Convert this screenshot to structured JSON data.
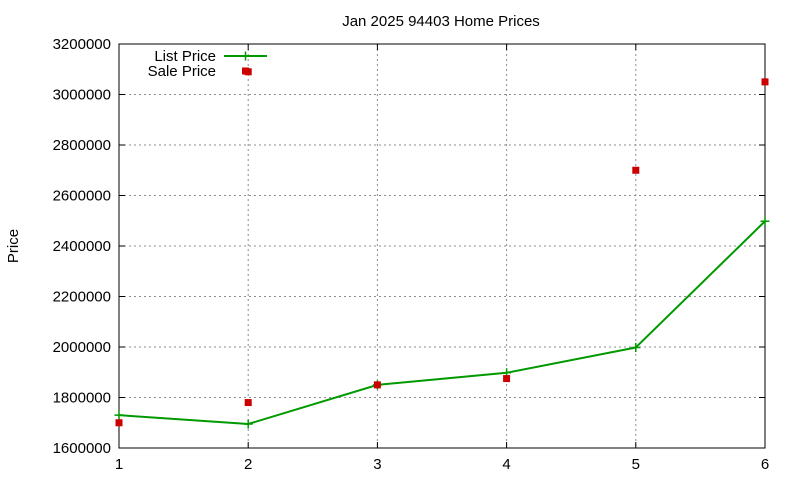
{
  "chart_data": {
    "type": "line",
    "title": "Jan 2025 94403 Home Prices",
    "xlabel": "",
    "ylabel": "Price",
    "x": [
      1,
      2,
      3,
      4,
      5,
      6
    ],
    "x_ticks": [
      "1",
      "2",
      "3",
      "4",
      "5",
      "6"
    ],
    "xlim": [
      1,
      6
    ],
    "ylim": [
      1600000,
      3200000
    ],
    "y_ticks": [
      "1600000",
      "1800000",
      "2000000",
      "2200000",
      "2400000",
      "2600000",
      "2800000",
      "3000000",
      "3200000"
    ],
    "grid": true,
    "legend_position": "top-left",
    "series": [
      {
        "name": "List Price",
        "style": "line-plus",
        "color": "#009900",
        "values": [
          1730000,
          1695000,
          1850000,
          1898000,
          1998000,
          2498000
        ]
      },
      {
        "name": "Sale Price",
        "style": "square-points",
        "color": "#cc0000",
        "values": [
          1700000,
          1780000,
          1850000,
          1875000,
          2700000,
          3050000
        ]
      }
    ],
    "extra_points": [
      {
        "series": "Sale Price",
        "x": 2,
        "y": 3090000
      }
    ]
  }
}
